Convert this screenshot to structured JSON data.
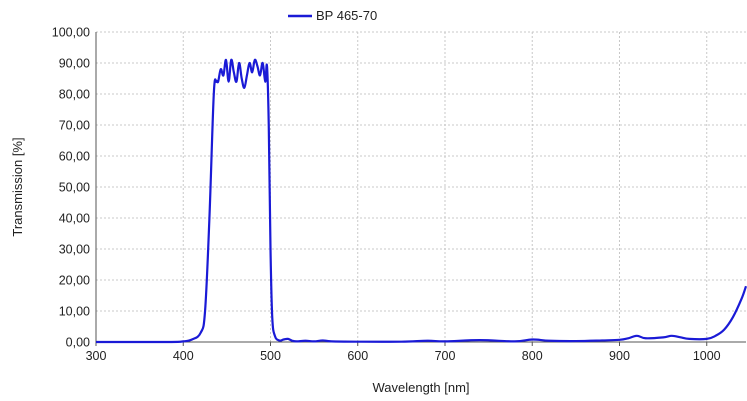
{
  "chart_data": {
    "type": "line",
    "title": "",
    "xlabel": "Wavelength [nm]",
    "ylabel": "Transmission [%]",
    "xlim": [
      300,
      1045
    ],
    "ylim": [
      0,
      100
    ],
    "x_ticks": [
      300,
      400,
      500,
      600,
      700,
      800,
      900,
      1000
    ],
    "y_ticks": [
      0,
      10,
      20,
      30,
      40,
      50,
      60,
      70,
      80,
      90,
      100
    ],
    "y_tick_labels": [
      "0,00",
      "10,00",
      "20,00",
      "30,00",
      "40,00",
      "50,00",
      "60,00",
      "70,00",
      "80,00",
      "90,00",
      "100,00"
    ],
    "grid": true,
    "legend_position": "top",
    "series": [
      {
        "name": "BP 465-70",
        "color": "#1a1ad6",
        "x": [
          300,
          380,
          400,
          410,
          420,
          425,
          430,
          435,
          438,
          440,
          443,
          446,
          449,
          452,
          455,
          458,
          461,
          464,
          467,
          470,
          473,
          476,
          479,
          482,
          485,
          488,
          491,
          494,
          496,
          498,
          500,
          502,
          505,
          510,
          515,
          520,
          525,
          530,
          540,
          550,
          560,
          570,
          600,
          650,
          680,
          700,
          740,
          780,
          800,
          820,
          850,
          880,
          900,
          910,
          920,
          930,
          950,
          960,
          970,
          980,
          1000,
          1010,
          1020,
          1030,
          1040,
          1045
        ],
        "y": [
          0,
          0,
          0.2,
          0.8,
          3,
          10,
          40,
          80,
          84,
          84,
          88,
          86,
          91,
          84,
          91,
          87,
          84,
          90,
          85,
          82,
          86,
          90,
          87,
          91,
          89,
          86,
          90,
          84,
          89,
          70,
          30,
          8,
          2,
          0.5,
          0.8,
          1,
          0.4,
          0.2,
          0.4,
          0.2,
          0.5,
          0.2,
          0.1,
          0.1,
          0.4,
          0.2,
          0.6,
          0.2,
          0.8,
          0.4,
          0.3,
          0.5,
          0.7,
          1.2,
          2,
          1.2,
          1.5,
          2,
          1.5,
          1,
          1,
          2,
          4,
          8,
          14,
          18
        ]
      }
    ]
  }
}
